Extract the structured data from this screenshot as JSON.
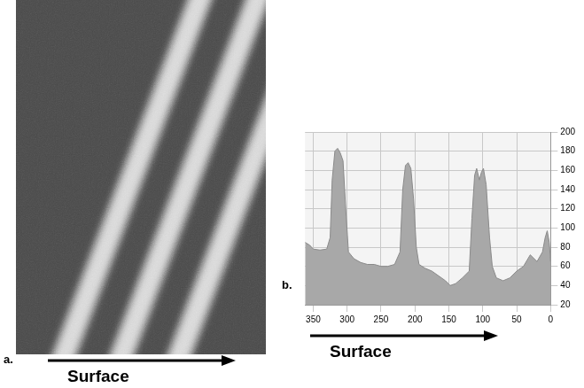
{
  "image_panel": {
    "letter": "a.",
    "label": "Surface"
  },
  "chart_data": {
    "type": "area",
    "letter": "b.",
    "annotations": [
      "Surface"
    ],
    "x": [
      362,
      355,
      350,
      340,
      330,
      325,
      322,
      318,
      314,
      310,
      306,
      302,
      298,
      290,
      280,
      270,
      260,
      250,
      240,
      230,
      222,
      218,
      214,
      210,
      206,
      202,
      198,
      194,
      185,
      175,
      165,
      155,
      148,
      140,
      130,
      120,
      116,
      112,
      109,
      105,
      102,
      99,
      95,
      90,
      86,
      80,
      70,
      60,
      50,
      40,
      30,
      20,
      12,
      8,
      5,
      2,
      0
    ],
    "values": [
      85,
      82,
      78,
      77,
      78,
      90,
      150,
      180,
      183,
      178,
      170,
      120,
      75,
      68,
      64,
      62,
      62,
      60,
      60,
      62,
      75,
      140,
      165,
      168,
      162,
      130,
      80,
      62,
      58,
      55,
      50,
      45,
      40,
      42,
      48,
      55,
      110,
      155,
      162,
      150,
      158,
      162,
      145,
      90,
      60,
      48,
      45,
      48,
      55,
      60,
      72,
      65,
      75,
      90,
      97,
      85,
      65
    ],
    "xlim": [
      362,
      0
    ],
    "xticks": [
      350,
      300,
      250,
      200,
      150,
      100,
      50,
      0
    ],
    "ylim": [
      20,
      200
    ],
    "yticks": [
      20,
      40,
      60,
      80,
      100,
      120,
      140,
      160,
      180,
      200
    ],
    "grid": true,
    "color": "#a8a8a8"
  }
}
